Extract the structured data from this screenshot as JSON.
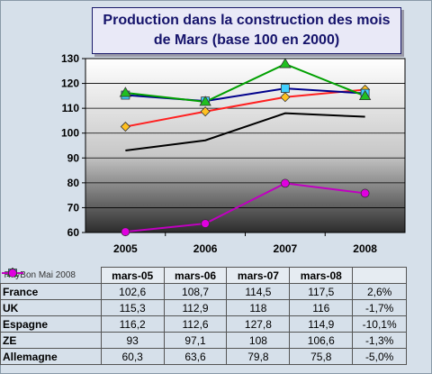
{
  "chart_data": {
    "type": "line",
    "title": "Production dans la construction des mois de Mars (base 100 en 2000)",
    "x": [
      "2005",
      "2006",
      "2007",
      "2008"
    ],
    "ylim": [
      60,
      130
    ],
    "yticks": [
      60,
      70,
      80,
      90,
      100,
      110,
      120,
      130
    ],
    "grid": true,
    "series": [
      {
        "name": "France",
        "values": [
          102.6,
          108.7,
          114.5,
          117.5
        ],
        "color": "#ff2020",
        "marker": "diamond",
        "marker_color": "#ffc020"
      },
      {
        "name": "UK",
        "values": [
          115.3,
          112.9,
          118,
          116
        ],
        "color": "#00008b",
        "marker": "square",
        "marker_color": "#40d0ff"
      },
      {
        "name": "Espagne",
        "values": [
          116.2,
          112.6,
          127.8,
          114.9
        ],
        "color": "#00a000",
        "marker": "triangle",
        "marker_color": "#20c020"
      },
      {
        "name": "ZE",
        "values": [
          93,
          97.1,
          108,
          106.6
        ],
        "color": "#000000",
        "marker": "none",
        "marker_color": "#000000"
      },
      {
        "name": "Allemagne",
        "values": [
          60.3,
          63.6,
          79.8,
          75.8
        ],
        "color": "#c000c0",
        "marker": "circle",
        "marker_color": "#e000e0"
      }
    ]
  },
  "table": {
    "credit": "RayBon Mai 2008",
    "headers": [
      "mars-05",
      "mars-06",
      "mars-07",
      "mars-08",
      ""
    ],
    "rows": [
      {
        "label": "France",
        "cells": [
          "102,6",
          "108,7",
          "114,5",
          "117,5",
          "2,6%"
        ]
      },
      {
        "label": "UK",
        "cells": [
          "115,3",
          "112,9",
          "118",
          "116",
          "-1,7%"
        ]
      },
      {
        "label": "Espagne",
        "cells": [
          "116,2",
          "112,6",
          "127,8",
          "114,9",
          "-10,1%"
        ]
      },
      {
        "label": "ZE",
        "cells": [
          "93",
          "97,1",
          "108",
          "106,6",
          "-1,3%"
        ]
      },
      {
        "label": "Allemagne",
        "cells": [
          "60,3",
          "63,6",
          "79,8",
          "75,8",
          "-5,0%"
        ]
      }
    ]
  }
}
